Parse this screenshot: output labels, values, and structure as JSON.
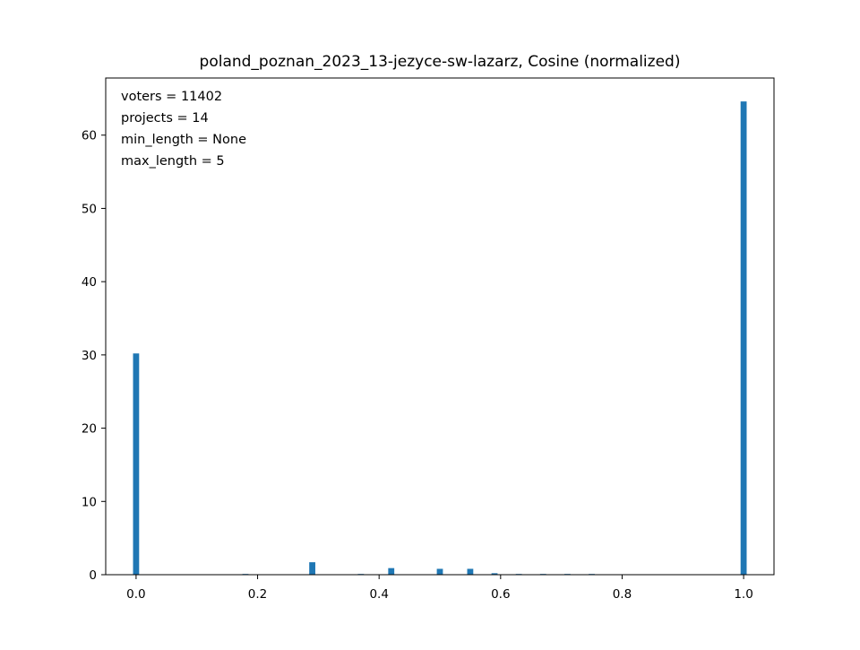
{
  "chart_data": {
    "type": "bar",
    "title": "poland_poznan_2023_13-jezyce-sw-lazarz, Cosine (normalized)",
    "xlabel": "",
    "ylabel": "",
    "xlim": [
      -0.05,
      1.05
    ],
    "ylim": [
      0,
      67.8
    ],
    "x_ticks": [
      "0.0",
      "0.2",
      "0.4",
      "0.6",
      "0.8",
      "1.0"
    ],
    "y_ticks": [
      "0",
      "10",
      "20",
      "30",
      "40",
      "50",
      "60"
    ],
    "bin_width": 0.01,
    "bar_color": "#1f77b4",
    "grid": false,
    "annotations": [
      "voters = 11402",
      "projects = 14",
      "min_length = None",
      "max_length = 5"
    ],
    "bins": [
      {
        "x": 0.0,
        "value": 30.2
      },
      {
        "x": 0.18,
        "value": 0.1
      },
      {
        "x": 0.29,
        "value": 1.7
      },
      {
        "x": 0.37,
        "value": 0.1
      },
      {
        "x": 0.42,
        "value": 0.9
      },
      {
        "x": 0.5,
        "value": 0.8
      },
      {
        "x": 0.55,
        "value": 0.8
      },
      {
        "x": 0.59,
        "value": 0.2
      },
      {
        "x": 0.63,
        "value": 0.1
      },
      {
        "x": 0.67,
        "value": 0.1
      },
      {
        "x": 0.71,
        "value": 0.1
      },
      {
        "x": 0.75,
        "value": 0.1
      },
      {
        "x": 1.0,
        "value": 64.6
      }
    ]
  }
}
